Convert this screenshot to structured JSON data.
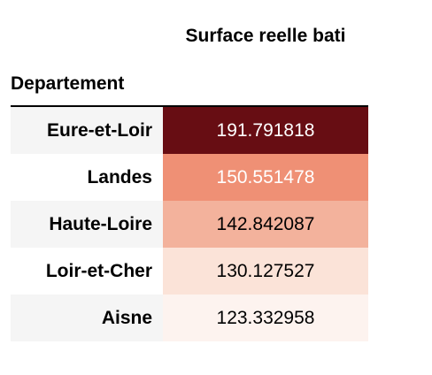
{
  "chart_data": {
    "type": "table",
    "column_header": "Surface reelle bati",
    "index_header": "Departement",
    "rows": [
      {
        "label": "Eure-et-Loir",
        "value": "191.791818",
        "bg": "#670d13",
        "fg": "#ffffff"
      },
      {
        "label": "Landes",
        "value": "150.551478",
        "bg": "#ef9075",
        "fg": "#ffffff"
      },
      {
        "label": "Haute-Loire",
        "value": "142.842087",
        "bg": "#f3b29c",
        "fg": "#000000"
      },
      {
        "label": "Loir-et-Cher",
        "value": "130.127527",
        "bg": "#fbe3d8",
        "fg": "#000000"
      },
      {
        "label": "Aisne",
        "value": "123.332958",
        "bg": "#fdf3ef",
        "fg": "#000000"
      }
    ]
  }
}
